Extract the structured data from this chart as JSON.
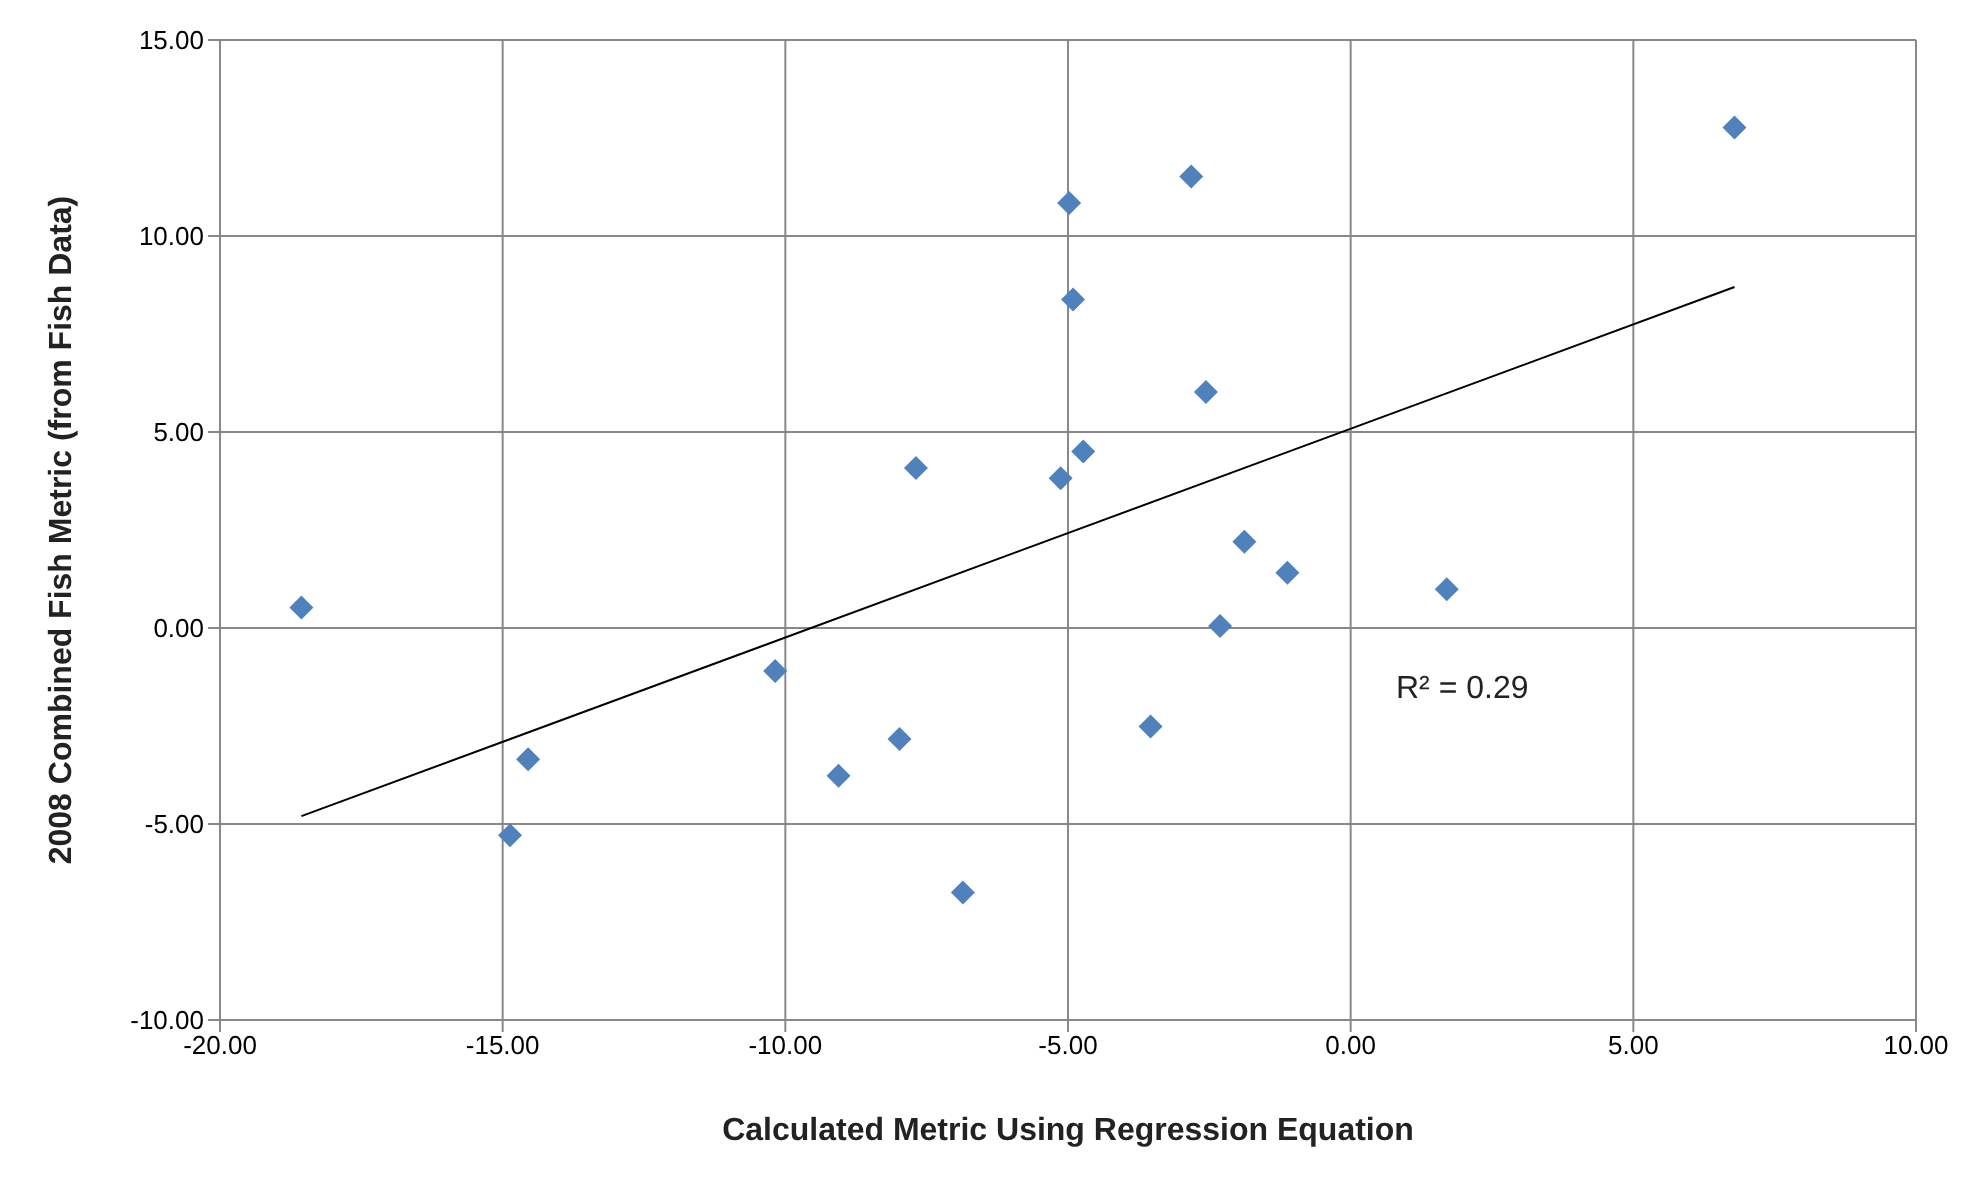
{
  "chart_data": {
    "type": "scatter",
    "xlabel": "Calculated Metric Using Regression Equation",
    "ylabel": "2008 Combined Fish Metric (from Fish Data)",
    "xlim": [
      -20,
      10
    ],
    "xticks": [
      {
        "value": -20,
        "label": "-20.00"
      },
      {
        "value": -15,
        "label": "-15.00"
      },
      {
        "value": -10,
        "label": "-10.00"
      },
      {
        "value": -5,
        "label": "-5.00"
      },
      {
        "value": 0,
        "label": "0.00"
      },
      {
        "value": 5,
        "label": "5.00"
      },
      {
        "value": 10,
        "label": "10.00"
      }
    ],
    "ylim": [
      -10,
      15
    ],
    "yticks": [
      {
        "value": -10,
        "label": "-10.00"
      },
      {
        "value": -5,
        "label": "-5.00"
      },
      {
        "value": 0,
        "label": "0.00"
      },
      {
        "value": 5,
        "label": "5.00"
      },
      {
        "value": 10,
        "label": "10.00"
      },
      {
        "value": 15,
        "label": "15.00"
      }
    ],
    "grid": true,
    "annotations": [
      "R² = 0.29"
    ],
    "series": [
      {
        "marker": "diamond",
        "color": "#4f81bd",
        "x": [
          -18.56,
          -14.55,
          -14.87,
          -10.18,
          -9.06,
          -7.98,
          -7.69,
          -6.86,
          -5.13,
          -4.98,
          -4.91,
          -4.73,
          -3.54,
          -2.82,
          -2.56,
          -2.31,
          -1.88,
          -1.12,
          1.7,
          6.79
        ],
        "values": [
          0.52,
          -3.35,
          -5.29,
          -1.1,
          -3.77,
          -2.83,
          4.08,
          -6.75,
          3.82,
          10.84,
          8.38,
          4.5,
          -2.51,
          11.52,
          6.02,
          0.05,
          2.2,
          1.41,
          0.99,
          12.77
        ]
      },
      {
        "type": "line",
        "marker": "none",
        "line_style": "solid",
        "color": "#000000",
        "x": [
          -18.56,
          6.79
        ],
        "values": [
          -4.8,
          8.7
        ]
      }
    ]
  }
}
